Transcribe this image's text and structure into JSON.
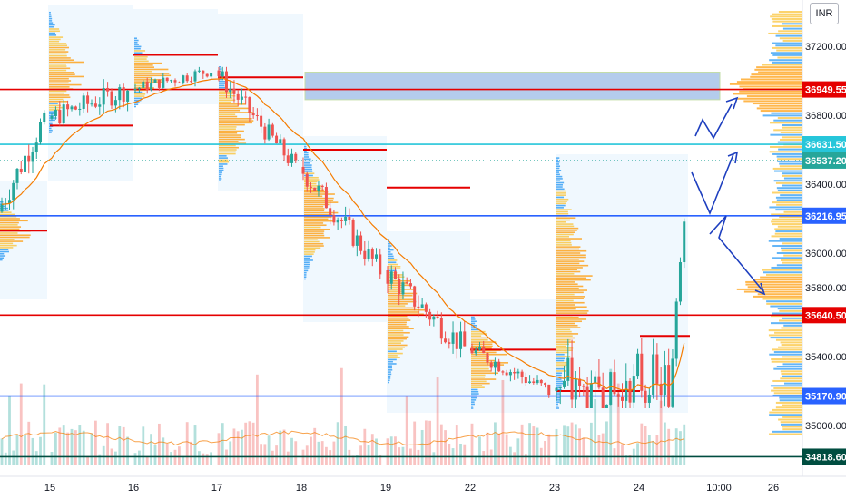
{
  "currency": "INR",
  "colors": {
    "up": "#26a69a",
    "down": "#ef5350",
    "ema": "#f57c00",
    "redLevel": "#e50000",
    "blueLevel": "#2962ff",
    "cyanLevel": "#26c6da",
    "darkLevel": "#004d40",
    "profileOrange": "#ff9800",
    "profileYellow": "#fbc02d",
    "profileBlue": "#2196f3",
    "zoneFill": "#5b8fd6",
    "zoneBorder": "#7cb342",
    "arrow": "#1e3fbf"
  },
  "chart_data": {
    "type": "candlestick",
    "ylim": [
      34700,
      37400
    ],
    "yticks": [
      {
        "v": 37200,
        "label": "37200.00"
      },
      {
        "v": 36800,
        "label": "36800.00"
      },
      {
        "v": 36400,
        "label": "36400.00"
      },
      {
        "v": 36000,
        "label": "36000.00"
      },
      {
        "v": 35800,
        "label": "35800.00"
      },
      {
        "v": 35400,
        "label": "35400.00"
      },
      {
        "v": 35000,
        "label": "35000.00"
      }
    ],
    "xticks": [
      "15",
      "16",
      "17",
      "18",
      "19",
      "22",
      "23",
      "24",
      "10:00",
      "26"
    ],
    "price_labels": [
      {
        "v": 36949.55,
        "label": "36949.55",
        "color": "red"
      },
      {
        "v": 36631.5,
        "label": "36631.50",
        "color": "cyan"
      },
      {
        "v": 36537.2,
        "label": "36537.20",
        "color": "up"
      },
      {
        "v": 36216.95,
        "label": "36216.95",
        "color": "blue"
      },
      {
        "v": 35640.5,
        "label": "35640.50",
        "color": "red"
      },
      {
        "v": 35170.9,
        "label": "35170.90",
        "color": "blue"
      },
      {
        "v": 34818.6,
        "label": "34818.60",
        "color": "dark"
      }
    ],
    "zone": {
      "from": 36890,
      "to": 37050
    },
    "sessions": [
      {
        "day": "15",
        "open": 36240,
        "close": 36780,
        "high": 36830,
        "low": 35960
      },
      {
        "day": "16",
        "open": 36780,
        "close": 36950,
        "high": 37400,
        "low": 36700
      },
      {
        "day": "17",
        "open": 36950,
        "close": 37060,
        "high": 37250,
        "low": 36850
      },
      {
        "day": "18",
        "open": 37060,
        "close": 36500,
        "high": 37080,
        "low": 36420
      },
      {
        "day": "19",
        "open": 36500,
        "close": 35900,
        "high": 36620,
        "low": 35850
      },
      {
        "day": "22",
        "open": 35900,
        "close": 35450,
        "high": 36080,
        "low": 35250
      },
      {
        "day": "23",
        "open": 35450,
        "close": 35200,
        "high": 35650,
        "low": 35100
      },
      {
        "day": "24",
        "open": 35200,
        "close": 36537.2,
        "high": 36560,
        "low": 35100
      }
    ]
  }
}
